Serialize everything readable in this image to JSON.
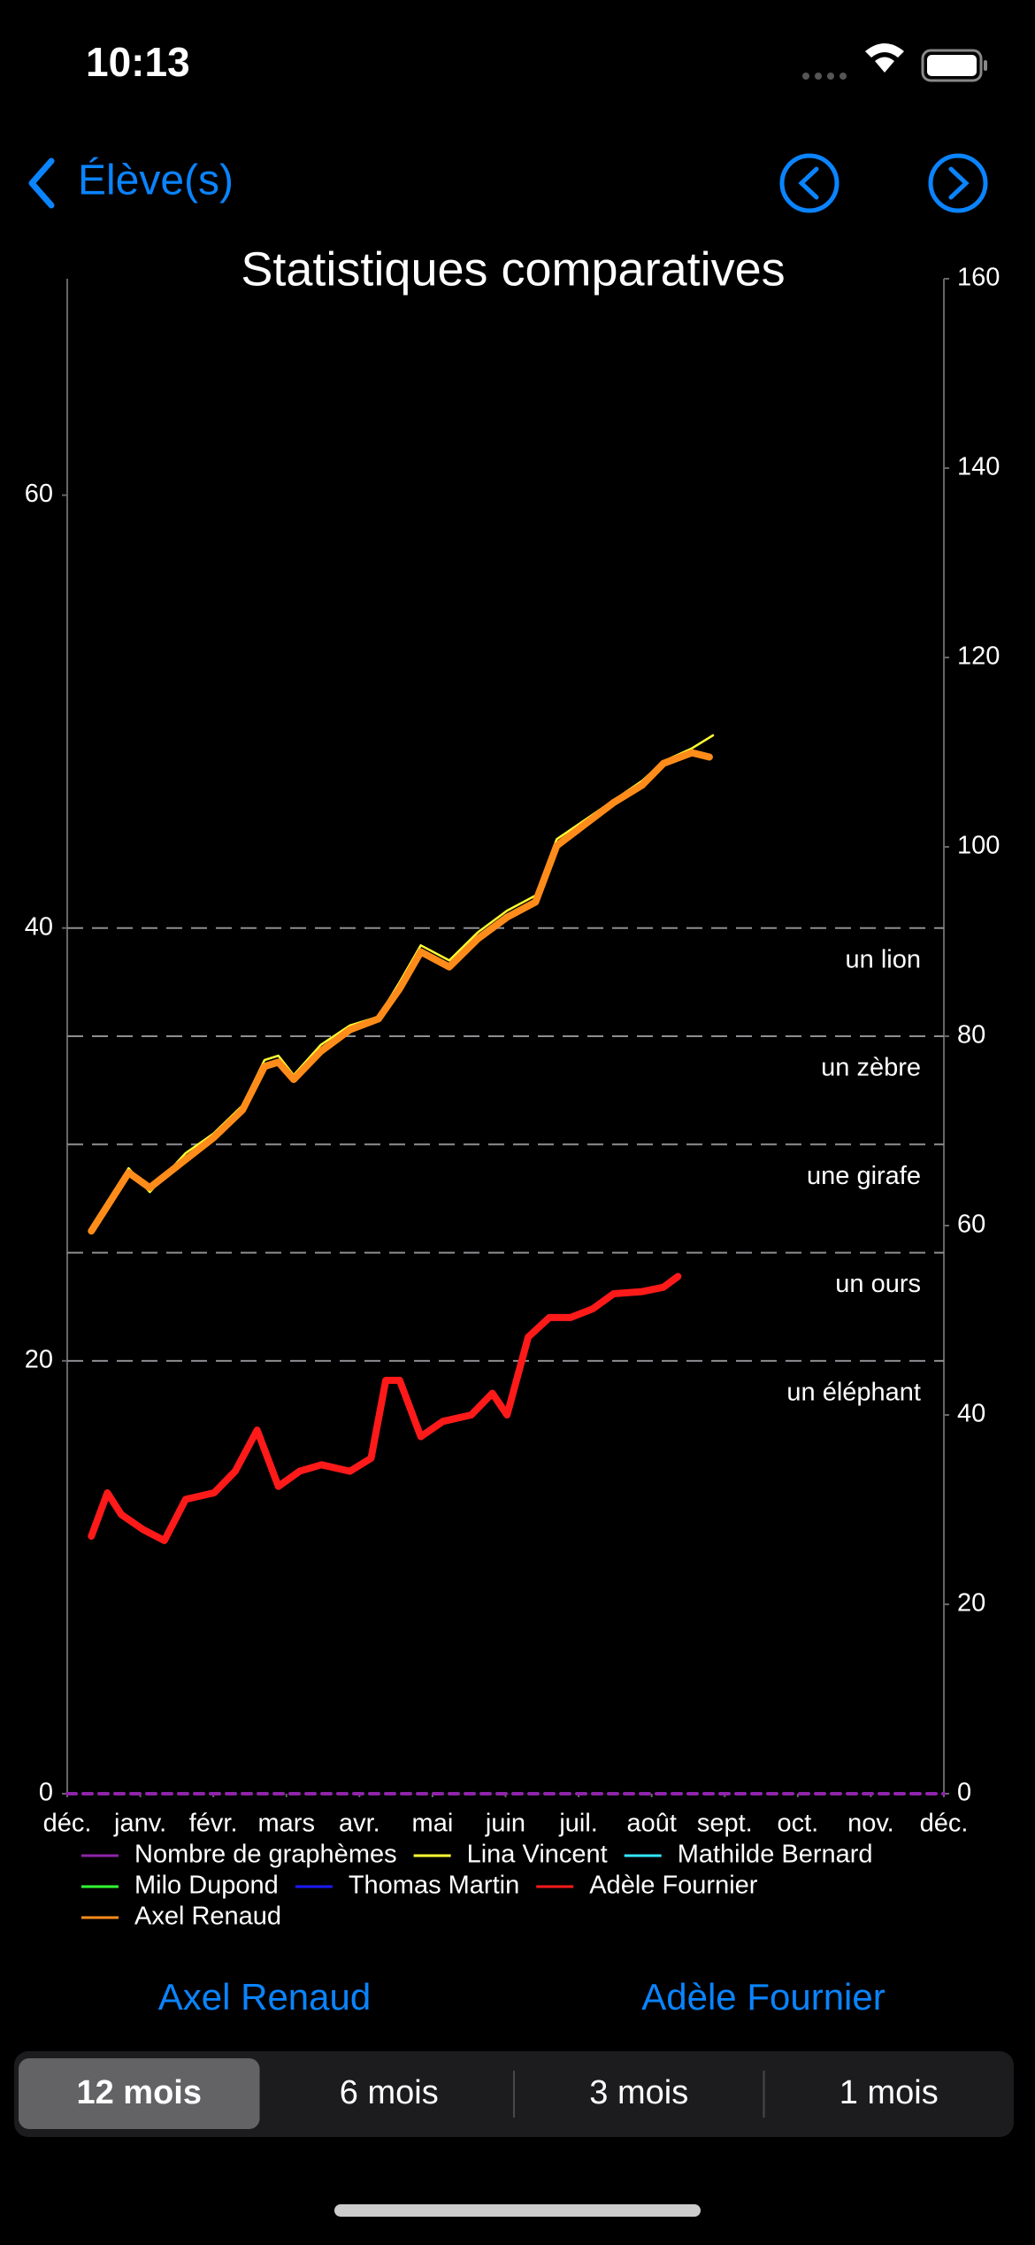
{
  "status_bar": {
    "time": "10:13"
  },
  "nav": {
    "back": "Élève(s)"
  },
  "chart_data": {
    "type": "line",
    "title": "Statistiques comparatives",
    "xlim": [
      0,
      12
    ],
    "xticks": [
      {
        "value": 0,
        "label": "déc."
      },
      {
        "value": 1,
        "label": "janv."
      },
      {
        "value": 2,
        "label": "févr."
      },
      {
        "value": 3,
        "label": "mars"
      },
      {
        "value": 4,
        "label": "avr."
      },
      {
        "value": 5,
        "label": "mai"
      },
      {
        "value": 6,
        "label": "juin"
      },
      {
        "value": 7,
        "label": "juil."
      },
      {
        "value": 8,
        "label": "août"
      },
      {
        "value": 9,
        "label": "sept."
      },
      {
        "value": 10,
        "label": "oct."
      },
      {
        "value": 11,
        "label": "nov."
      },
      {
        "value": 12,
        "label": "déc."
      }
    ],
    "ylim": [
      0,
      70
    ],
    "yticks": [
      0,
      20,
      40,
      60
    ],
    "y2lim": [
      0,
      160
    ],
    "y2ticks": [
      0,
      20,
      40,
      60,
      80,
      100,
      120,
      140,
      160
    ],
    "thresholds": [
      {
        "value": 40,
        "label": "un lion"
      },
      {
        "value": 35,
        "label": "un zèbre"
      },
      {
        "value": 30,
        "label": "une girafe"
      },
      {
        "value": 25,
        "label": "un ours"
      },
      {
        "value": 20,
        "label": "un éléphant"
      }
    ],
    "series": [
      {
        "name": "Nombre de graphèmes",
        "color": "#8e24aa",
        "axis": "y2",
        "dashed": true,
        "x": [
          0,
          12
        ],
        "values": [
          0,
          0
        ]
      },
      {
        "name": "Lina Vincent",
        "color": "#ffff33",
        "x": [
          0.33,
          0.84,
          1.13,
          1.62,
          2.0,
          2.4,
          2.7,
          2.89,
          3.1,
          3.47,
          3.87,
          4.26,
          4.55,
          4.84,
          5.23,
          5.62,
          6.02,
          6.41,
          6.7,
          7.09,
          7.48,
          7.87,
          8.16,
          8.55,
          8.84
        ],
        "values": [
          26.2,
          28.9,
          27.8,
          29.6,
          30.5,
          31.8,
          33.9,
          34.1,
          33.2,
          34.6,
          35.5,
          35.9,
          37.5,
          39.2,
          38.5,
          39.8,
          40.8,
          41.5,
          44.1,
          45.0,
          45.9,
          46.8,
          47.7,
          48.3,
          48.9
        ]
      },
      {
        "name": "Mathilde Bernard",
        "color": "#33e6ff",
        "x": [],
        "values": []
      },
      {
        "name": "Milo Dupond",
        "color": "#33ff33",
        "x": [],
        "values": []
      },
      {
        "name": "Thomas Martin",
        "color": "#1a1aff",
        "x": [],
        "values": []
      },
      {
        "name": "Adèle Fournier",
        "color": "#ff1a1a",
        "x": [
          0.33,
          0.55,
          0.74,
          1.04,
          1.33,
          1.62,
          2.01,
          2.3,
          2.6,
          2.89,
          3.18,
          3.48,
          3.87,
          4.16,
          4.36,
          4.55,
          4.84,
          5.14,
          5.53,
          5.82,
          6.02,
          6.31,
          6.6,
          6.89,
          7.19,
          7.48,
          7.87,
          8.16,
          8.36
        ],
        "values": [
          11.9,
          13.9,
          12.9,
          12.2,
          11.7,
          13.6,
          13.9,
          14.9,
          16.8,
          14.2,
          14.9,
          15.2,
          14.9,
          15.5,
          19.1,
          19.1,
          16.5,
          17.2,
          17.5,
          18.5,
          17.5,
          21.1,
          22.0,
          22.0,
          22.4,
          23.1,
          23.2,
          23.4,
          23.9
        ]
      },
      {
        "name": "Axel Renaud",
        "color": "#ff8c1a",
        "x": [
          0.33,
          0.84,
          1.13,
          1.62,
          2.0,
          2.4,
          2.7,
          2.89,
          3.1,
          3.47,
          3.87,
          4.26,
          4.55,
          4.84,
          5.23,
          5.62,
          6.02,
          6.41,
          6.7,
          7.09,
          7.48,
          7.87,
          8.16,
          8.55,
          8.79
        ],
        "values": [
          26.0,
          28.7,
          28.0,
          29.3,
          30.3,
          31.6,
          33.6,
          33.8,
          33.0,
          34.3,
          35.3,
          35.8,
          37.2,
          38.9,
          38.2,
          39.5,
          40.5,
          41.2,
          43.8,
          44.8,
          45.8,
          46.6,
          47.6,
          48.1,
          47.9
        ]
      }
    ]
  },
  "buttons": [
    "Axel Renaud",
    "Adèle Fournier"
  ],
  "segments": {
    "options": [
      "12 mois",
      "6 mois",
      "3 mois",
      "1 mois"
    ],
    "selected": 0
  }
}
